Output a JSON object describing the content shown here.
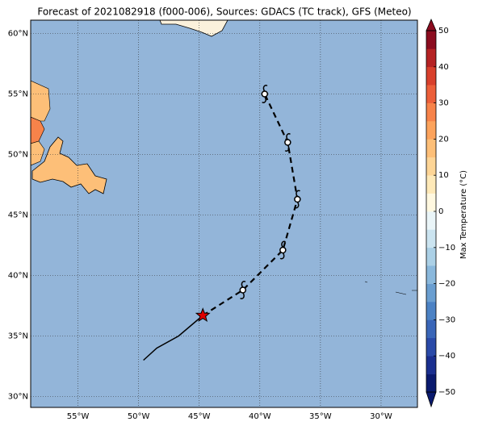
{
  "title": "Forecast of 2021082918 (f000-006), Sources: GDACS (TC track), GFS (Meteo)",
  "map": {
    "xlim": [
      -58.9,
      -27.0
    ],
    "ylim": [
      29.1,
      61.1
    ],
    "ocean_color": "#93b5d9",
    "grid": true,
    "lon_ticks": [
      {
        "value": -55,
        "label": "55°W"
      },
      {
        "value": -50,
        "label": "50°W"
      },
      {
        "value": -45,
        "label": "45°W"
      },
      {
        "value": -40,
        "label": "40°W"
      },
      {
        "value": -35,
        "label": "35°W"
      },
      {
        "value": -30,
        "label": "30°W"
      }
    ],
    "lat_ticks": [
      {
        "value": 30,
        "label": "30°N"
      },
      {
        "value": 35,
        "label": "35°N"
      },
      {
        "value": 40,
        "label": "40°N"
      },
      {
        "value": 45,
        "label": "45°N"
      },
      {
        "value": 50,
        "label": "50°N"
      },
      {
        "value": 55,
        "label": "55°N"
      },
      {
        "value": 60,
        "label": "60°N"
      }
    ]
  },
  "track": {
    "past": [
      [
        -49.6,
        33.0
      ],
      [
        -48.5,
        34.0
      ],
      [
        -46.7,
        35.0
      ],
      [
        -44.7,
        36.7
      ]
    ],
    "current": [
      -44.7,
      36.7
    ],
    "forecast": [
      [
        -41.4,
        38.8
      ],
      [
        -38.1,
        42.1
      ],
      [
        -36.9,
        46.3
      ],
      [
        -37.7,
        51.0
      ],
      [
        -39.6,
        55.0
      ]
    ]
  },
  "colorbar": {
    "label": "Max Temperature (°C)",
    "ticks": [
      {
        "value": -50,
        "label": "−50"
      },
      {
        "value": -40,
        "label": "−40"
      },
      {
        "value": -30,
        "label": "−30"
      },
      {
        "value": -20,
        "label": "−20"
      },
      {
        "value": -10,
        "label": "−10"
      },
      0,
      10,
      20,
      30,
      40,
      50
    ],
    "colors": [
      "#0a1a6e",
      "#1a2f8f",
      "#2a4aa8",
      "#3a66b8",
      "#4c82c4",
      "#6a9ed0",
      "#8ab8dc",
      "#abd0e6",
      "#cbe4f0",
      "#eaf5f8",
      "#fff8e0",
      "#fee9b8",
      "#fdd596",
      "#fdbf78",
      "#fca35c",
      "#f7834a",
      "#ec5f3a",
      "#d8402c",
      "#b52324",
      "#8b0c1f"
    ]
  }
}
